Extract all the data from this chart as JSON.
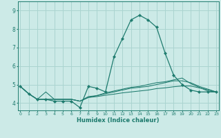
{
  "xlabel": "Humidex (Indice chaleur)",
  "background_color": "#cceae7",
  "grid_color": "#aad4d0",
  "line_color": "#1e7b6e",
  "xlim": [
    -0.3,
    23.3
  ],
  "ylim": [
    3.6,
    9.5
  ],
  "yticks": [
    4,
    5,
    6,
    7,
    8,
    9
  ],
  "xticks": [
    0,
    1,
    2,
    3,
    4,
    5,
    6,
    7,
    8,
    9,
    10,
    11,
    12,
    13,
    14,
    15,
    16,
    17,
    18,
    19,
    20,
    21,
    22,
    23
  ],
  "series": [
    [
      4.9,
      4.5,
      4.2,
      4.2,
      4.1,
      4.1,
      4.1,
      3.75,
      4.9,
      4.8,
      4.6,
      6.5,
      7.5,
      8.5,
      8.75,
      8.5,
      8.1,
      6.7,
      5.5,
      5.0,
      4.7,
      4.6,
      4.6,
      4.6
    ],
    [
      4.9,
      4.5,
      4.2,
      4.6,
      4.2,
      4.2,
      4.2,
      4.1,
      4.35,
      4.4,
      4.55,
      4.65,
      4.75,
      4.85,
      4.9,
      5.0,
      5.1,
      5.15,
      5.25,
      5.35,
      5.05,
      4.85,
      4.65,
      4.6
    ],
    [
      4.9,
      4.5,
      4.2,
      4.2,
      4.2,
      4.2,
      4.2,
      4.1,
      4.3,
      4.35,
      4.42,
      4.48,
      4.55,
      4.6,
      4.65,
      4.7,
      4.78,
      4.82,
      4.88,
      4.92,
      4.92,
      4.82,
      4.72,
      4.6
    ],
    [
      4.9,
      4.5,
      4.2,
      4.2,
      4.2,
      4.2,
      4.2,
      4.1,
      4.3,
      4.4,
      4.5,
      4.6,
      4.7,
      4.8,
      4.85,
      4.9,
      5.0,
      5.1,
      5.2,
      5.2,
      5.1,
      4.9,
      4.75,
      4.6
    ]
  ],
  "marker_series": 0
}
